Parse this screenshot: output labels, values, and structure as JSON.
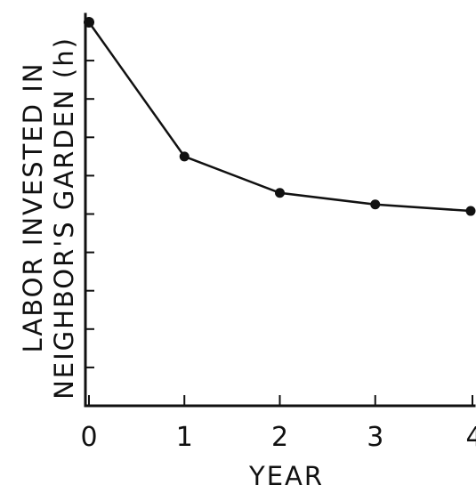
{
  "chart_data": {
    "type": "line",
    "title": "",
    "xlabel": "YEAR",
    "ylabel_lines": [
      "LABOR INVESTED IN",
      "NEIGHBOR'S GARDEN (h)"
    ],
    "x": [
      0,
      1,
      2,
      3,
      4
    ],
    "x_tick_labels": [
      "0",
      "1",
      "2",
      "3",
      "4"
    ],
    "series": [
      {
        "values": [
          100,
          65,
          55.5,
          52.5,
          50.8
        ]
      }
    ],
    "xlim": [
      0,
      4
    ],
    "ylim": [
      0,
      100
    ],
    "y_tick_count": 10,
    "y_tick_labels_shown": false,
    "grid": false,
    "colors": {
      "ink": "#111111",
      "background": "#ffffff"
    }
  }
}
